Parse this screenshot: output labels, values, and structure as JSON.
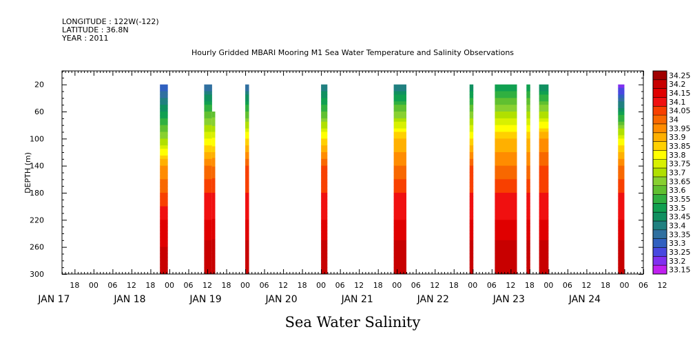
{
  "header": {
    "longitude": "LONGITUDE : 122W(-122)",
    "latitude": "LATITUDE : 36.8N",
    "year": "YEAR : 2011"
  },
  "chart_data": {
    "type": "heatmap",
    "title": "Hourly Gridded MBARI Mooring M1 Sea Water Temperature and Salinity Observations",
    "xlabel": "Sea Water Salinity",
    "ylabel": "DEPTH (m)",
    "x_range_hours": [
      -4,
      180
    ],
    "ylim": [
      300,
      0
    ],
    "y_ticks": [
      20,
      60,
      100,
      140,
      180,
      220,
      260,
      300
    ],
    "x_hour_ticks": [
      "18",
      "00",
      "06",
      "12",
      "18",
      "00",
      "06",
      "12",
      "18",
      "00",
      "06",
      "12",
      "18",
      "00",
      "06",
      "12",
      "18",
      "00",
      "06",
      "12",
      "18",
      "00",
      "06",
      "12",
      "18",
      "00",
      "06",
      "12",
      "18",
      "00",
      "06",
      "12"
    ],
    "x_day_labels": [
      "JAN 17",
      "JAN 18",
      "JAN 19",
      "JAN 20",
      "JAN 21",
      "JAN 22",
      "JAN 23",
      "JAN 24"
    ],
    "colorbar_levels": [
      "34.25",
      "34.2",
      "34.15",
      "34.1",
      "34.05",
      "34",
      "33.95",
      "33.9",
      "33.85",
      "33.8",
      "33.75",
      "33.7",
      "33.65",
      "33.6",
      "33.55",
      "33.5",
      "33.45",
      "33.4",
      "33.35",
      "33.3",
      "33.25",
      "33.2",
      "33.15"
    ],
    "colorbar_colors": [
      "#a00000",
      "#c80000",
      "#e00000",
      "#f01010",
      "#f84000",
      "#f86800",
      "#ff8c00",
      "#ffb000",
      "#ffd000",
      "#ffff00",
      "#d8f000",
      "#b0e000",
      "#88d030",
      "#60c030",
      "#30b040",
      "#10a050",
      "#109060",
      "#208080",
      "#3070a0",
      "#3060c0",
      "#4848e0",
      "#8030f0",
      "#c020f0"
    ],
    "data_blocks": [
      {
        "start_hour": 27,
        "end_hour": 29.5,
        "top_depth": 20,
        "profile": [
          33.3,
          33.5,
          33.7,
          33.95,
          34.05,
          34.15,
          34.2,
          34.25
        ]
      },
      {
        "start_hour": 41,
        "end_hour": 43.5,
        "top_depth": 20,
        "profile": [
          33.35,
          33.6,
          33.8,
          34.0,
          34.1,
          34.15,
          34.22,
          34.25
        ]
      },
      {
        "start_hour": 43.5,
        "end_hour": 44.5,
        "top_depth": 60,
        "profile": [
          33.6,
          33.8,
          34.0,
          34.1,
          34.15,
          34.22,
          34.25
        ]
      },
      {
        "start_hour": 54,
        "end_hour": 55.2,
        "top_depth": 20,
        "profile": [
          33.35,
          33.6,
          33.85,
          34.05,
          34.1,
          34.15,
          34.22,
          34.25
        ]
      },
      {
        "start_hour": 78,
        "end_hour": 80,
        "top_depth": 20,
        "profile": [
          33.4,
          33.6,
          33.85,
          34.05,
          34.1,
          34.15,
          34.22,
          34.25
        ]
      },
      {
        "start_hour": 101,
        "end_hour": 105,
        "top_depth": 20,
        "profile": [
          33.4,
          33.65,
          33.9,
          34.0,
          34.1,
          34.15,
          34.22,
          34.25
        ]
      },
      {
        "start_hour": 125,
        "end_hour": 126.2,
        "top_depth": 20,
        "profile": [
          33.45,
          33.65,
          33.85,
          34.05,
          34.1,
          34.15,
          34.22,
          34.25
        ]
      },
      {
        "start_hour": 133,
        "end_hour": 140,
        "top_depth": 20,
        "profile": [
          33.5,
          33.7,
          33.9,
          34.0,
          34.1,
          34.15,
          34.22,
          34.25
        ]
      },
      {
        "start_hour": 143,
        "end_hour": 144.2,
        "top_depth": 20,
        "profile": [
          33.5,
          33.7,
          33.9,
          34.0,
          34.1,
          34.15,
          34.22,
          34.25
        ]
      },
      {
        "start_hour": 147,
        "end_hour": 150,
        "top_depth": 20,
        "profile": [
          33.45,
          33.7,
          33.95,
          34.05,
          34.1,
          34.15,
          34.22,
          34.25
        ]
      },
      {
        "start_hour": 172,
        "end_hour": 174,
        "top_depth": 20,
        "profile": [
          33.2,
          33.5,
          33.8,
          34.0,
          34.1,
          34.15,
          34.22,
          34.25
        ]
      }
    ]
  }
}
